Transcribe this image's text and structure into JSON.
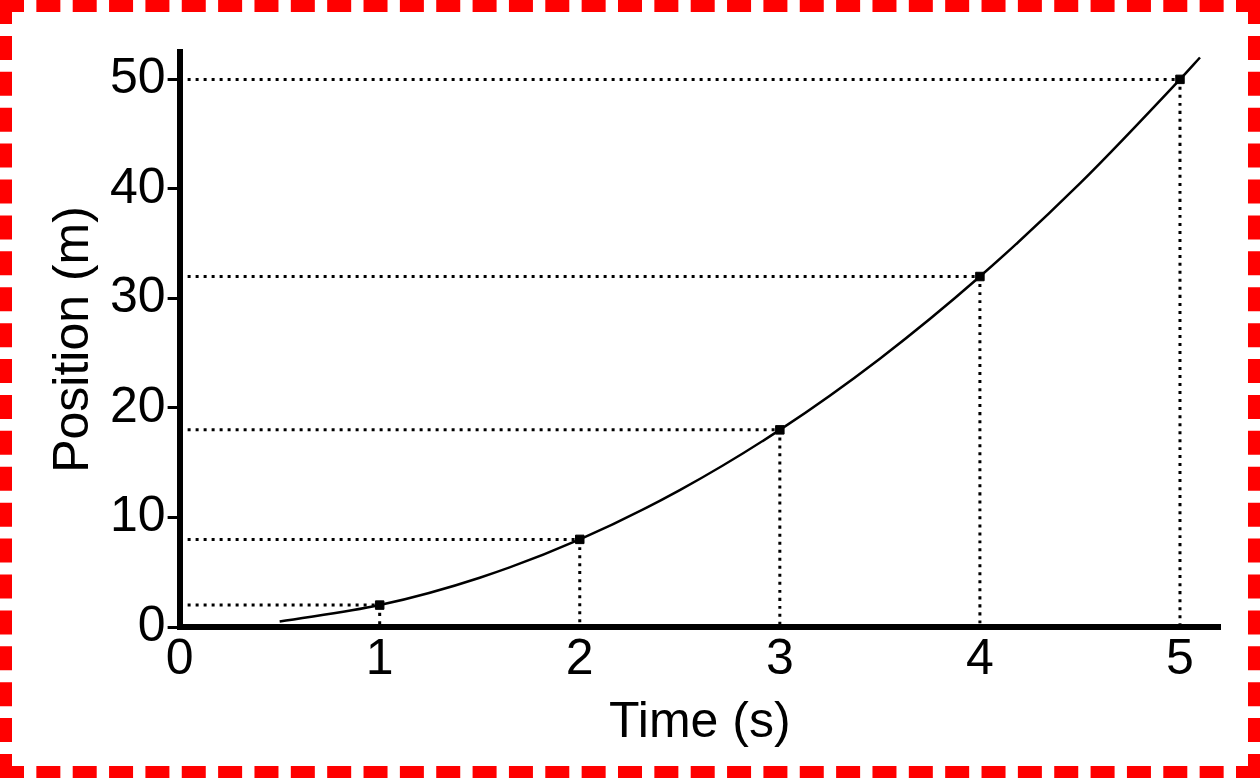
{
  "chart_data": {
    "type": "line",
    "xlabel": "Time (s)",
    "ylabel": "Position (m)",
    "xlim": [
      0,
      5.2
    ],
    "ylim": [
      0,
      52.5
    ],
    "xticks": [
      0,
      1,
      2,
      3,
      4,
      5
    ],
    "yticks": [
      0,
      10,
      20,
      30,
      40,
      50
    ],
    "grid": false,
    "series": [
      {
        "type": "line",
        "color": "#000000",
        "marker": "none",
        "line_style": "solid",
        "x": [
          0.5,
          1,
          1.5,
          2,
          2.5,
          3,
          3.5,
          4,
          4.5,
          5,
          5.1
        ],
        "values": [
          0.5,
          2,
          4.5,
          8,
          12.5,
          18,
          24.5,
          32,
          40.5,
          50,
          52
        ]
      },
      {
        "type": "scatter",
        "color": "#000000",
        "marker": "square",
        "x": [
          1,
          2,
          3,
          4,
          5
        ],
        "values": [
          2,
          8,
          18,
          32,
          50
        ]
      },
      {
        "type": "line",
        "color": "#000000",
        "marker": "none",
        "line_style": "dotted",
        "x": [
          0,
          1,
          1
        ],
        "values": [
          2,
          2,
          0
        ]
      },
      {
        "type": "line",
        "color": "#000000",
        "marker": "none",
        "line_style": "dotted",
        "x": [
          0,
          2,
          2
        ],
        "values": [
          8,
          8,
          0
        ]
      },
      {
        "type": "line",
        "color": "#000000",
        "marker": "none",
        "line_style": "dotted",
        "x": [
          0,
          3,
          3
        ],
        "values": [
          18,
          18,
          0
        ]
      },
      {
        "type": "line",
        "color": "#000000",
        "marker": "none",
        "line_style": "dotted",
        "x": [
          0,
          4,
          4
        ],
        "values": [
          32,
          32,
          0
        ]
      },
      {
        "type": "line",
        "color": "#000000",
        "marker": "none",
        "line_style": "dotted",
        "x": [
          0,
          5,
          5
        ],
        "values": [
          50,
          50,
          0
        ]
      }
    ]
  }
}
